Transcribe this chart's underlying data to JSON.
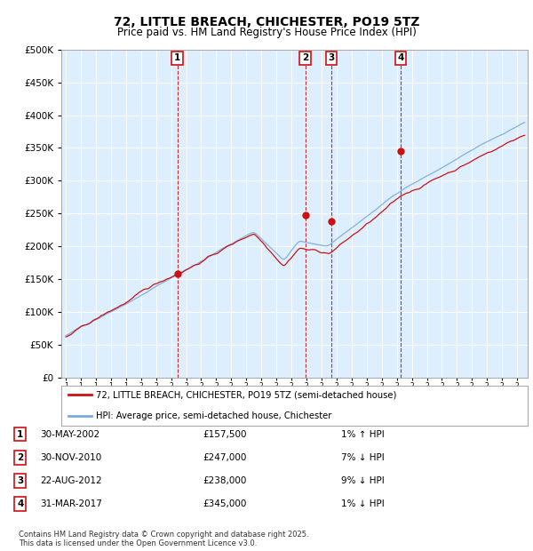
{
  "title": "72, LITTLE BREACH, CHICHESTER, PO19 5TZ",
  "subtitle": "Price paid vs. HM Land Registry's House Price Index (HPI)",
  "legend_line1": "72, LITTLE BREACH, CHICHESTER, PO19 5TZ (semi-detached house)",
  "legend_line2": "HPI: Average price, semi-detached house, Chichester",
  "footer1": "Contains HM Land Registry data © Crown copyright and database right 2025.",
  "footer2": "This data is licensed under the Open Government Licence v3.0.",
  "sales": [
    {
      "num": 1,
      "date": "30-MAY-2002",
      "price": 157500,
      "pct": "1%",
      "dir": "↑"
    },
    {
      "num": 2,
      "date": "30-NOV-2010",
      "price": 247000,
      "pct": "7%",
      "dir": "↓"
    },
    {
      "num": 3,
      "date": "22-AUG-2012",
      "price": 238000,
      "pct": "9%",
      "dir": "↓"
    },
    {
      "num": 4,
      "date": "31-MAR-2017",
      "price": 345000,
      "pct": "1%",
      "dir": "↓"
    }
  ],
  "sale_years": [
    2002.41,
    2010.92,
    2012.64,
    2017.25
  ],
  "sale_prices": [
    157500,
    247000,
    238000,
    345000
  ],
  "ylim": [
    0,
    500000
  ],
  "yticks": [
    0,
    50000,
    100000,
    150000,
    200000,
    250000,
    300000,
    350000,
    400000,
    450000,
    500000
  ],
  "ytick_labels": [
    "£0",
    "£50K",
    "£100K",
    "£150K",
    "£200K",
    "£250K",
    "£300K",
    "£350K",
    "£400K",
    "£450K",
    "£500K"
  ],
  "hpi_color": "#7aaadd",
  "price_color": "#cc1111",
  "bg_color": "#ddeeff",
  "grid_color": "#ffffff",
  "label_box_color": "#cc1111"
}
